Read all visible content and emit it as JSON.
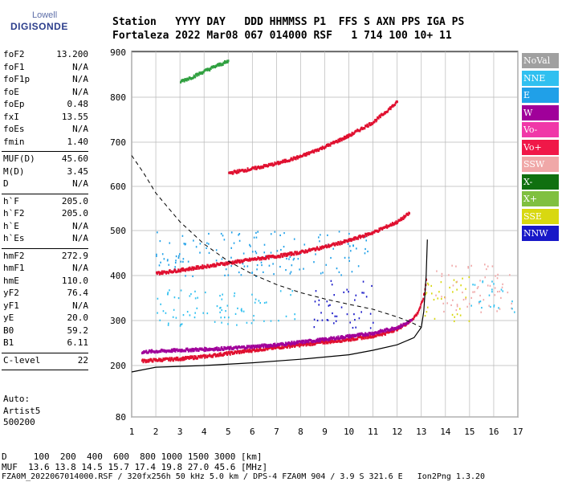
{
  "logo": {
    "line1": "Lowell",
    "line2": "DIGISONDE"
  },
  "header": {
    "row1": "Station   YYYY DAY   DDD HHMMSS P1  FFS S AXN PPS IGA PS",
    "row2": "Fortaleza 2022 Mar08 067 014000 RSF   1 714 100 10+ 11"
  },
  "params": [
    {
      "name": "foF2",
      "value": "13.200"
    },
    {
      "name": "foF1",
      "value": "N/A"
    },
    {
      "name": "foF1p",
      "value": "N/A"
    },
    {
      "name": "foE",
      "value": "N/A"
    },
    {
      "name": "foEp",
      "value": "0.48"
    },
    {
      "name": "fxI",
      "value": "13.55"
    },
    {
      "name": "foEs",
      "value": "N/A"
    },
    {
      "name": "fmin",
      "value": "1.40"
    },
    {
      "name": "MUF(D)",
      "value": "45.60"
    },
    {
      "name": "M(D)",
      "value": "3.45"
    },
    {
      "name": "D",
      "value": "N/A"
    },
    {
      "name": "h`F",
      "value": "205.0"
    },
    {
      "name": "h`F2",
      "value": "205.0"
    },
    {
      "name": "h`E",
      "value": "N/A"
    },
    {
      "name": "h`Es",
      "value": "N/A"
    },
    {
      "name": "hmF2",
      "value": "272.9"
    },
    {
      "name": "hmF1",
      "value": "N/A"
    },
    {
      "name": "hmE",
      "value": "110.0"
    },
    {
      "name": "yF2",
      "value": "76.4"
    },
    {
      "name": "yF1",
      "value": "N/A"
    },
    {
      "name": "yE",
      "value": "20.0"
    },
    {
      "name": "B0",
      "value": "59.2"
    },
    {
      "name": "B1",
      "value": "6.11"
    },
    {
      "name": "C-level",
      "value": "22"
    }
  ],
  "auto_info": [
    "Auto:",
    "Artist5",
    "500200"
  ],
  "footer": {
    "line1": "D     100  200  400  600  800 1000 1500 3000 [km]",
    "line2": "MUF  13.6 13.8 14.5 15.7 17.4 19.8 27.0 45.6 [MHz]",
    "line3": "FZA0M_2022067014000.RSF / 320fx256h 50 kHz 5.0 km / DPS-4 FZA0M 904 / 3.9 S 321.6 E   Ion2Png 1.3.20"
  },
  "legend": [
    {
      "label": "NoVal",
      "color": "#a0a0a0"
    },
    {
      "label": "NNE",
      "color": "#30c0f0"
    },
    {
      "label": "E",
      "color": "#20a0e8"
    },
    {
      "label": "W",
      "color": "#a0009a"
    },
    {
      "label": "Vo-",
      "color": "#f038a8"
    },
    {
      "label": "Vo+",
      "color": "#f01848"
    },
    {
      "label": "SSW",
      "color": "#f0a8a8"
    },
    {
      "label": "X-",
      "color": "#107010"
    },
    {
      "label": "X+",
      "color": "#80c040"
    },
    {
      "label": "SSE",
      "color": "#d8d810"
    },
    {
      "label": "NNW",
      "color": "#1818c8"
    }
  ],
  "chart_data": {
    "type": "scatter",
    "xlim": [
      1,
      17
    ],
    "ylim": [
      80,
      900
    ],
    "x_ticks": [
      1,
      2,
      3,
      4,
      5,
      6,
      7,
      8,
      9,
      10,
      11,
      12,
      13,
      14,
      15,
      16,
      17
    ],
    "y_ticks": [
      80,
      200,
      300,
      400,
      500,
      600,
      700,
      800,
      900
    ],
    "grid": true,
    "traces": [
      {
        "name": "O-trace F2",
        "color": "#e01030",
        "points": [
          [
            1.4,
            210
          ],
          [
            2,
            212
          ],
          [
            3,
            215
          ],
          [
            4,
            220
          ],
          [
            5,
            227
          ],
          [
            6,
            234
          ],
          [
            7,
            240
          ],
          [
            8,
            246
          ],
          [
            9,
            252
          ],
          [
            10,
            258
          ],
          [
            11,
            266
          ],
          [
            11.5,
            272
          ],
          [
            12,
            282
          ],
          [
            12.5,
            298
          ],
          [
            12.8,
            315
          ],
          [
            13,
            340
          ],
          [
            13.1,
            360
          ],
          [
            13.2,
            400
          ]
        ]
      },
      {
        "name": "W band",
        "color": "#a0009a",
        "points": [
          [
            1.4,
            230
          ],
          [
            3,
            234
          ],
          [
            5,
            238
          ],
          [
            7,
            246
          ],
          [
            9,
            258
          ],
          [
            11,
            272
          ],
          [
            12,
            285
          ],
          [
            12.6,
            300
          ]
        ]
      },
      {
        "name": "Second hop",
        "color": "#e01030",
        "points": [
          [
            2,
            405
          ],
          [
            3,
            412
          ],
          [
            4,
            420
          ],
          [
            5,
            428
          ],
          [
            6,
            436
          ],
          [
            7,
            443
          ],
          [
            8,
            452
          ],
          [
            9,
            464
          ],
          [
            10,
            478
          ],
          [
            11,
            496
          ],
          [
            12,
            520
          ],
          [
            12.5,
            540
          ]
        ]
      },
      {
        "name": "Third hop",
        "color": "#e01030",
        "points": [
          [
            5,
            630
          ],
          [
            6,
            640
          ],
          [
            7,
            652
          ],
          [
            8,
            668
          ],
          [
            9,
            690
          ],
          [
            10,
            715
          ],
          [
            11,
            745
          ],
          [
            12,
            790
          ]
        ]
      },
      {
        "name": "Fourth hop",
        "color": "#30a040",
        "points": [
          [
            3,
            835
          ],
          [
            3.5,
            845
          ],
          [
            4,
            858
          ],
          [
            4.5,
            870
          ],
          [
            5,
            880
          ]
        ]
      }
    ],
    "profile_curve": {
      "color": "#000000",
      "points": [
        [
          1,
          185
        ],
        [
          2,
          196
        ],
        [
          4,
          200
        ],
        [
          6,
          206
        ],
        [
          8,
          214
        ],
        [
          10,
          224
        ],
        [
          11,
          234
        ],
        [
          12,
          246
        ],
        [
          12.7,
          262
        ],
        [
          13.0,
          285
        ],
        [
          13.1,
          320
        ],
        [
          13.2,
          400
        ],
        [
          13.25,
          480
        ]
      ]
    },
    "muf_curve": {
      "color": "#000000",
      "style": "dashed",
      "points": [
        [
          1,
          670
        ],
        [
          1.5,
          630
        ],
        [
          2,
          585
        ],
        [
          3,
          520
        ],
        [
          4,
          470
        ],
        [
          5,
          432
        ],
        [
          6,
          403
        ],
        [
          7,
          380
        ],
        [
          8,
          362
        ],
        [
          9,
          348
        ],
        [
          10,
          336
        ],
        [
          11,
          325
        ],
        [
          12,
          308
        ],
        [
          12.5,
          298
        ],
        [
          13,
          285
        ]
      ]
    },
    "clusters": [
      {
        "name": "NNE scatter",
        "color": "#30c0f0",
        "x": [
          2,
          8
        ],
        "y": [
          290,
          370
        ]
      },
      {
        "name": "E scatter",
        "color": "#20a0e8",
        "x": [
          2,
          11
        ],
        "y": [
          400,
          500
        ]
      },
      {
        "name": "NNW spread",
        "color": "#1818c8",
        "x": [
          8.5,
          11
        ],
        "y": [
          285,
          390
        ]
      },
      {
        "name": "SSE F-spread",
        "color": "#d8d810",
        "x": [
          13,
          15
        ],
        "y": [
          300,
          400
        ]
      },
      {
        "name": "SSW F-spread",
        "color": "#f0a8a8",
        "x": [
          13.5,
          16.8
        ],
        "y": [
          320,
          430
        ]
      },
      {
        "name": "NNE spread high",
        "color": "#30c0f0",
        "x": [
          15,
          16.9
        ],
        "y": [
          320,
          390
        ]
      }
    ]
  }
}
